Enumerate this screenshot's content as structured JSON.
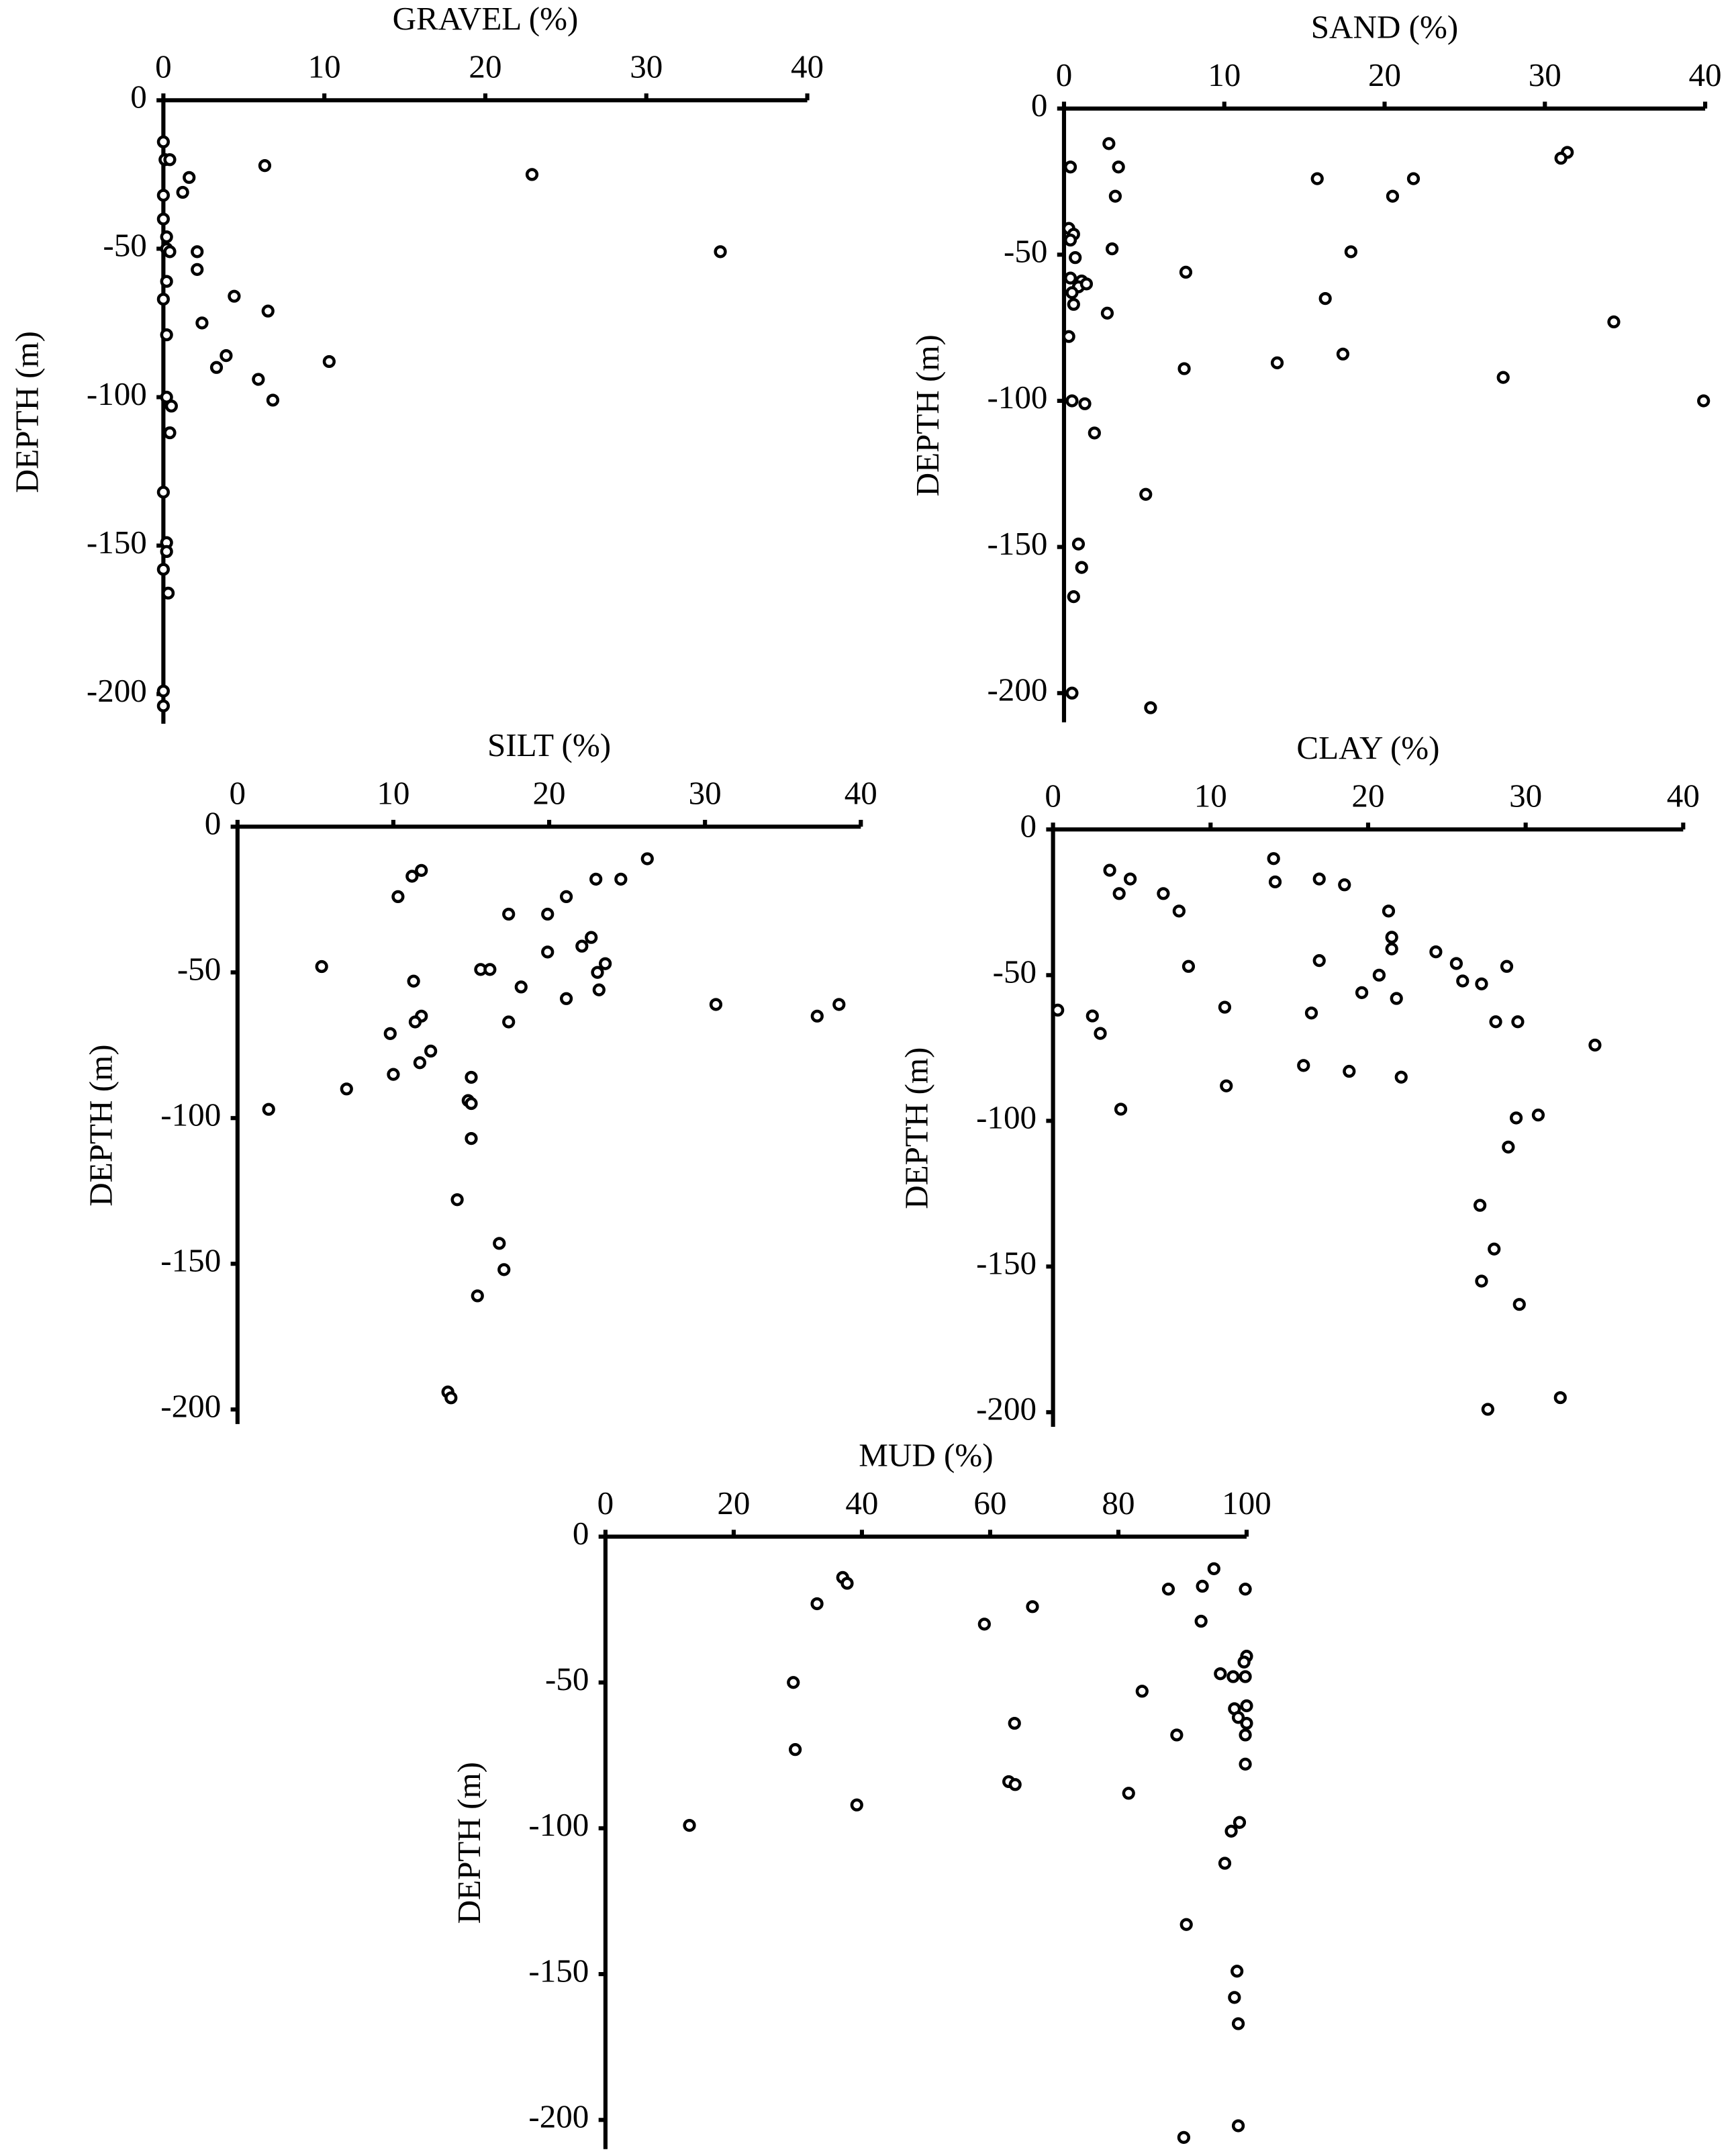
{
  "chart_data": [
    {
      "type": "scatter",
      "title": "GRAVEL (%)",
      "y_label": "DEPTH (m)",
      "color": "#000000",
      "grid": false,
      "xlim": [
        0,
        40
      ],
      "xticks": [
        0,
        10,
        20,
        30,
        40
      ],
      "ylim": [
        -210,
        0
      ],
      "yticks": [
        0,
        -50,
        -100,
        -150,
        -200
      ],
      "x": [
        0,
        0.1,
        0.4,
        6.3,
        1.6,
        22.9,
        1.2,
        0,
        0,
        0.2,
        0.2,
        0.4,
        2.1,
        34.6,
        2.1,
        0.2,
        0,
        4.4,
        6.5,
        2.4,
        0.2,
        3.9,
        3.3,
        10.3,
        5.9,
        6.8,
        0.2,
        0.5,
        0.4,
        0,
        0.2,
        0.2,
        0,
        0.3,
        0,
        0
      ],
      "y": [
        -14,
        -20,
        -20,
        -22,
        -26,
        -25,
        -31,
        -32,
        -40,
        -46,
        -50,
        -51,
        -51,
        -51,
        -57,
        -61,
        -67,
        -66,
        -71,
        -75,
        -79,
        -86,
        -90,
        -88,
        -94,
        -101,
        -100,
        -103,
        -112,
        -132,
        -149,
        -152,
        -158,
        -166,
        -199,
        -204
      ]
    },
    {
      "type": "scatter",
      "title": "SAND (%)",
      "y_label": "DEPTH (m)",
      "color": "#000000",
      "grid": false,
      "xlim": [
        0,
        40
      ],
      "xticks": [
        0,
        10,
        20,
        30,
        40
      ],
      "ylim": [
        -210,
        0
      ],
      "yticks": [
        0,
        -50,
        -100,
        -150,
        -200
      ],
      "x": [
        2.8,
        31.4,
        31.0,
        0.4,
        3.4,
        15.8,
        21.8,
        3.2,
        20.5,
        0.3,
        0.6,
        0.4,
        3.0,
        17.9,
        0.7,
        7.6,
        0.4,
        1.1,
        0.9,
        0.5,
        1.4,
        0.6,
        16.3,
        2.7,
        34.3,
        0.3,
        17.4,
        13.3,
        7.5,
        27.4,
        0.5,
        1.3,
        39.9,
        1.9,
        5.1,
        0.9,
        1.1,
        0.6,
        0.5,
        5.4
      ],
      "y": [
        -12,
        -15,
        -17,
        -20,
        -20,
        -24,
        -24,
        -30,
        -30,
        -41,
        -43,
        -45,
        -48,
        -49,
        -51,
        -56,
        -58,
        -59,
        -61,
        -63,
        -60,
        -67,
        -65,
        -70,
        -73,
        -78,
        -84,
        -87,
        -89,
        -92,
        -100,
        -101,
        -100,
        -111,
        -132,
        -149,
        -157,
        -167,
        -200,
        -205
      ]
    },
    {
      "type": "scatter",
      "title": "SILT (%)",
      "y_label": "DEPTH (m)",
      "color": "#000000",
      "grid": false,
      "xlim": [
        0,
        40
      ],
      "xticks": [
        0,
        10,
        20,
        30,
        40
      ],
      "ylim": [
        -205,
        0
      ],
      "yticks": [
        0,
        -50,
        -100,
        -150,
        -200
      ],
      "x": [
        26.3,
        11.8,
        11.2,
        24.6,
        23.0,
        10.3,
        21.1,
        17.4,
        19.9,
        22.7,
        22.1,
        19.9,
        23.6,
        5.4,
        15.6,
        16.2,
        23.1,
        11.3,
        18.2,
        23.2,
        21.1,
        30.7,
        38.6,
        37.2,
        11.8,
        11.4,
        17.4,
        9.8,
        12.4,
        11.7,
        10.0,
        15.0,
        7.0,
        14.8,
        15.0,
        2.0,
        15.0,
        14.1,
        16.8,
        17.1,
        15.4,
        13.5,
        13.7
      ],
      "y": [
        -11,
        -15,
        -17,
        -18,
        -18,
        -24,
        -24,
        -30,
        -30,
        -38,
        -41,
        -43,
        -47,
        -48,
        -49,
        -49,
        -50,
        -53,
        -55,
        -56,
        -59,
        -61,
        -61,
        -65,
        -65,
        -67,
        -67,
        -71,
        -77,
        -81,
        -85,
        -86,
        -90,
        -94,
        -95,
        -97,
        -107,
        -128,
        -143,
        -152,
        -161,
        -194,
        -196
      ]
    },
    {
      "type": "scatter",
      "title": "CLAY (%)",
      "y_label": "DEPTH (m)",
      "color": "#000000",
      "grid": false,
      "xlim": [
        0,
        40
      ],
      "xticks": [
        0,
        10,
        20,
        30,
        40
      ],
      "ylim": [
        -205,
        0
      ],
      "yticks": [
        0,
        -50,
        -100,
        -150,
        -200
      ],
      "x": [
        14.0,
        3.6,
        14.1,
        4.9,
        16.9,
        4.2,
        18.5,
        7.0,
        8.0,
        21.3,
        21.5,
        21.5,
        24.3,
        16.9,
        25.6,
        8.6,
        28.8,
        20.7,
        26.0,
        27.2,
        19.6,
        21.8,
        0.3,
        10.9,
        16.4,
        2.5,
        28.1,
        29.5,
        3.0,
        34.4,
        15.9,
        18.8,
        22.1,
        11.0,
        4.3,
        30.8,
        29.4,
        28.9,
        27.1,
        28.0,
        27.2,
        29.6,
        32.2,
        27.6
      ],
      "y": [
        -10,
        -14,
        -18,
        -17,
        -17,
        -22,
        -19,
        -22,
        -28,
        -28,
        -37,
        -41,
        -42,
        -45,
        -46,
        -47,
        -47,
        -50,
        -52,
        -53,
        -56,
        -58,
        -62,
        -61,
        -63,
        -64,
        -66,
        -66,
        -70,
        -74,
        -81,
        -83,
        -85,
        -88,
        -96,
        -98,
        -99,
        -109,
        -129,
        -144,
        -155,
        -163,
        -195,
        -199
      ]
    },
    {
      "type": "scatter",
      "title": "MUD (%)",
      "y_label": "DEPTH (m)",
      "color": "#000000",
      "grid": false,
      "xlim": [
        0,
        100
      ],
      "xticks": [
        0,
        20,
        40,
        60,
        80,
        100
      ],
      "ylim": [
        -210,
        0
      ],
      "yticks": [
        0,
        -50,
        -100,
        -150,
        -200
      ],
      "x": [
        94.9,
        37.0,
        37.7,
        93.1,
        87.8,
        99.8,
        33.0,
        66.6,
        92.9,
        59.1,
        100,
        99.6,
        95.9,
        97.9,
        99.8,
        29.3,
        83.7,
        100,
        98.1,
        98.7,
        63.8,
        100,
        99.8,
        89.1,
        29.6,
        99.8,
        62.9,
        63.9,
        81.6,
        39.2,
        98.9,
        97.6,
        13.1,
        96.6,
        90.6,
        98.5,
        98.1,
        98.7,
        98.7,
        90.2
      ],
      "y": [
        -11,
        -14,
        -16,
        -17,
        -18,
        -18,
        -23,
        -24,
        -29,
        -30,
        -41,
        -43,
        -47,
        -48,
        -48,
        -50,
        -53,
        -58,
        -59,
        -62,
        -64,
        -64,
        -68,
        -68,
        -73,
        -78,
        -84,
        -85,
        -88,
        -92,
        -98,
        -101,
        -99,
        -112,
        -133,
        -149,
        -158,
        -167,
        -202,
        -206
      ]
    }
  ]
}
